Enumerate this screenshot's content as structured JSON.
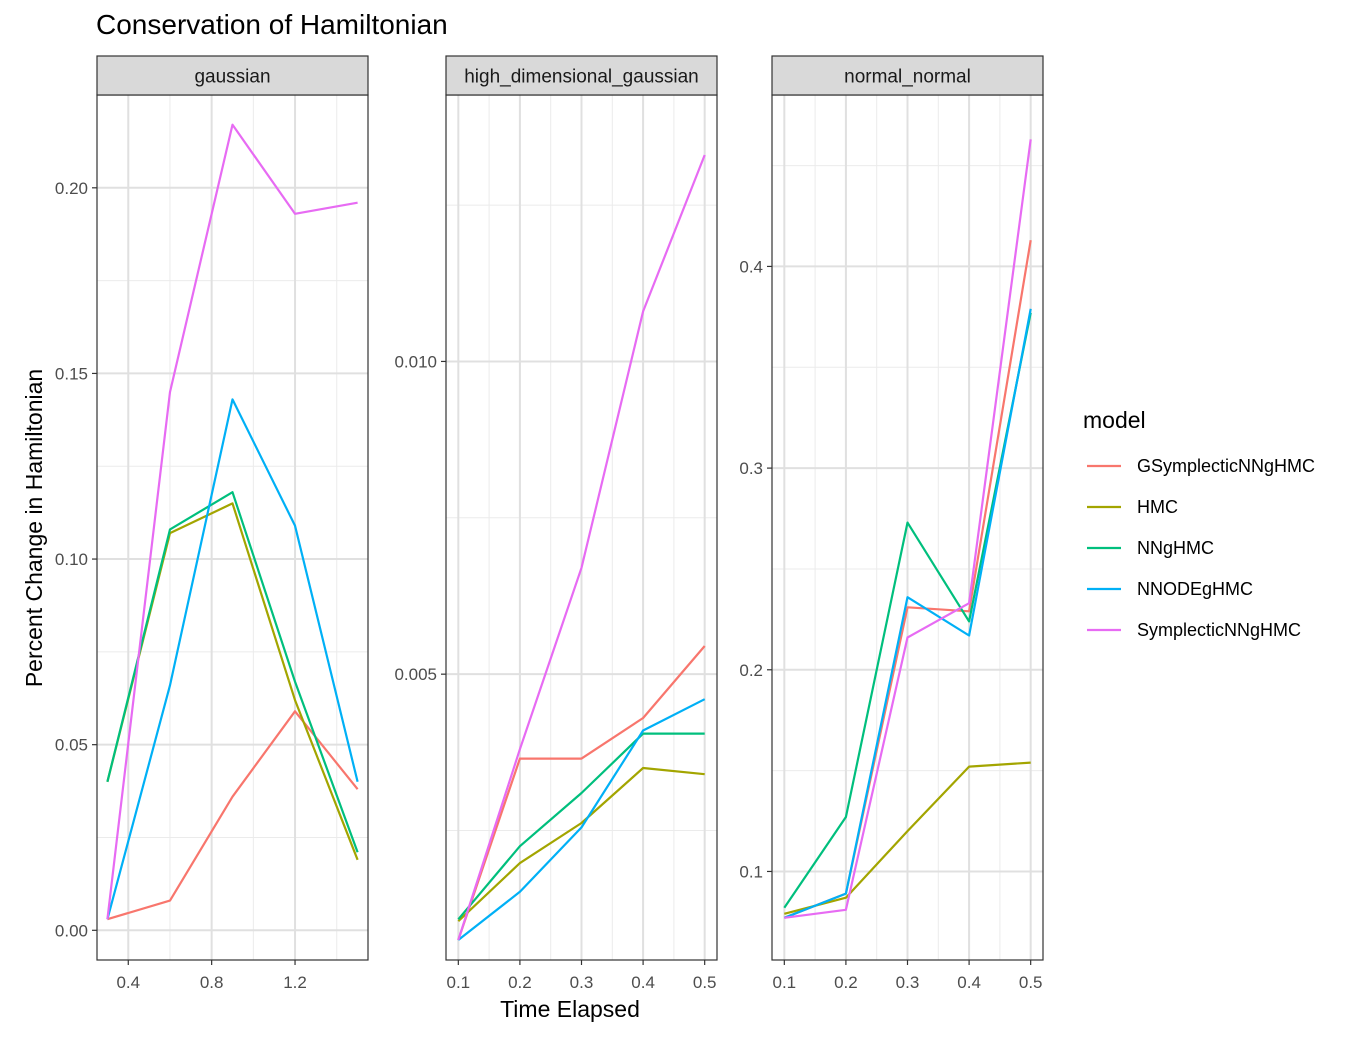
{
  "chart_data": {
    "type": "line",
    "title": "Conservation of Hamiltonian",
    "xlabel": "Time Elapsed",
    "ylabel": "Percent Change in Hamiltonian",
    "legend": {
      "title": "model",
      "placement": "right",
      "entries": [
        "GSymplecticNNgHMC",
        "HMC",
        "NNgHMC",
        "NNODEgHMC",
        "SymplecticNNgHMC"
      ]
    },
    "colors": {
      "GSymplecticNNgHMC": "#F8766D",
      "HMC": "#A3A500",
      "NNgHMC": "#00BF7D",
      "NNODEgHMC": "#00B0F6",
      "SymplecticNNgHMC": "#E76BF3"
    },
    "grid": true,
    "facets": [
      {
        "name": "gaussian",
        "x": [
          0.3,
          0.6,
          0.9,
          1.2,
          1.5
        ],
        "xlim": [
          0.25,
          1.55
        ],
        "ylim": [
          -0.008,
          0.225
        ],
        "xticks": [
          0.4,
          0.8,
          1.2
        ],
        "xtick_labels": [
          "0.4",
          "0.8",
          "1.2"
        ],
        "yticks": [
          0.0,
          0.05,
          0.1,
          0.15,
          0.2
        ],
        "ytick_labels": [
          "0.00",
          "0.05",
          "0.10",
          "0.15",
          "0.20"
        ],
        "series": [
          {
            "name": "GSymplecticNNgHMC",
            "values": [
              0.003,
              0.008,
              0.036,
              0.059,
              0.038
            ]
          },
          {
            "name": "HMC",
            "values": [
              0.04,
              0.107,
              0.115,
              0.062,
              0.019
            ]
          },
          {
            "name": "NNgHMC",
            "values": [
              0.04,
              0.108,
              0.118,
              0.067,
              0.021
            ]
          },
          {
            "name": "NNODEgHMC",
            "values": [
              0.003,
              0.066,
              0.143,
              0.109,
              0.04
            ]
          },
          {
            "name": "SymplecticNNgHMC",
            "values": [
              0.003,
              0.145,
              0.217,
              0.193,
              0.196
            ]
          }
        ]
      },
      {
        "name": "high_dimensional_gaussian",
        "x": [
          0.1,
          0.2,
          0.3,
          0.4,
          0.5
        ],
        "xlim": [
          0.08,
          0.52
        ],
        "ylim": [
          0.00043,
          0.01426
        ],
        "xticks": [
          0.1,
          0.2,
          0.3,
          0.4,
          0.5
        ],
        "xtick_labels": [
          "0.1",
          "0.2",
          "0.3",
          "0.4",
          "0.5"
        ],
        "yticks": [
          0.005,
          0.01
        ],
        "ytick_labels": [
          "0.005",
          "0.010"
        ],
        "series": [
          {
            "name": "GSymplecticNNgHMC",
            "values": [
              0.00075,
              0.00365,
              0.00365,
              0.0043,
              0.00545
            ]
          },
          {
            "name": "HMC",
            "values": [
              0.00105,
              0.00198,
              0.00262,
              0.0035,
              0.0034
            ]
          },
          {
            "name": "NNgHMC",
            "values": [
              0.00108,
              0.00225,
              0.0031,
              0.00405,
              0.00405
            ]
          },
          {
            "name": "NNODEgHMC",
            "values": [
              0.00075,
              0.00152,
              0.00255,
              0.0041,
              0.0046
            ]
          },
          {
            "name": "SymplecticNNgHMC",
            "values": [
              0.00075,
              0.0038,
              0.0067,
              0.0108,
              0.0133
            ]
          }
        ]
      },
      {
        "name": "normal_normal",
        "x": [
          0.1,
          0.2,
          0.3,
          0.4,
          0.5
        ],
        "xlim": [
          0.08,
          0.52
        ],
        "ylim": [
          0.0561,
          0.485
        ],
        "xticks": [
          0.1,
          0.2,
          0.3,
          0.4,
          0.5
        ],
        "xtick_labels": [
          "0.1",
          "0.2",
          "0.3",
          "0.4",
          "0.5"
        ],
        "yticks": [
          0.1,
          0.2,
          0.3,
          0.4
        ],
        "ytick_labels": [
          "0.1",
          "0.2",
          "0.3",
          "0.4"
        ],
        "series": [
          {
            "name": "GSymplecticNNgHMC",
            "values": [
              0.077,
              0.089,
              0.231,
              0.229,
              0.413
            ]
          },
          {
            "name": "HMC",
            "values": [
              0.079,
              0.087,
              0.12,
              0.152,
              0.154
            ]
          },
          {
            "name": "NNgHMC",
            "values": [
              0.082,
              0.127,
              0.273,
              0.224,
              0.377
            ]
          },
          {
            "name": "NNODEgHMC",
            "values": [
              0.077,
              0.089,
              0.236,
              0.217,
              0.379
            ]
          },
          {
            "name": "SymplecticNNgHMC",
            "values": [
              0.077,
              0.081,
              0.216,
              0.233,
              0.463
            ]
          }
        ]
      }
    ]
  }
}
